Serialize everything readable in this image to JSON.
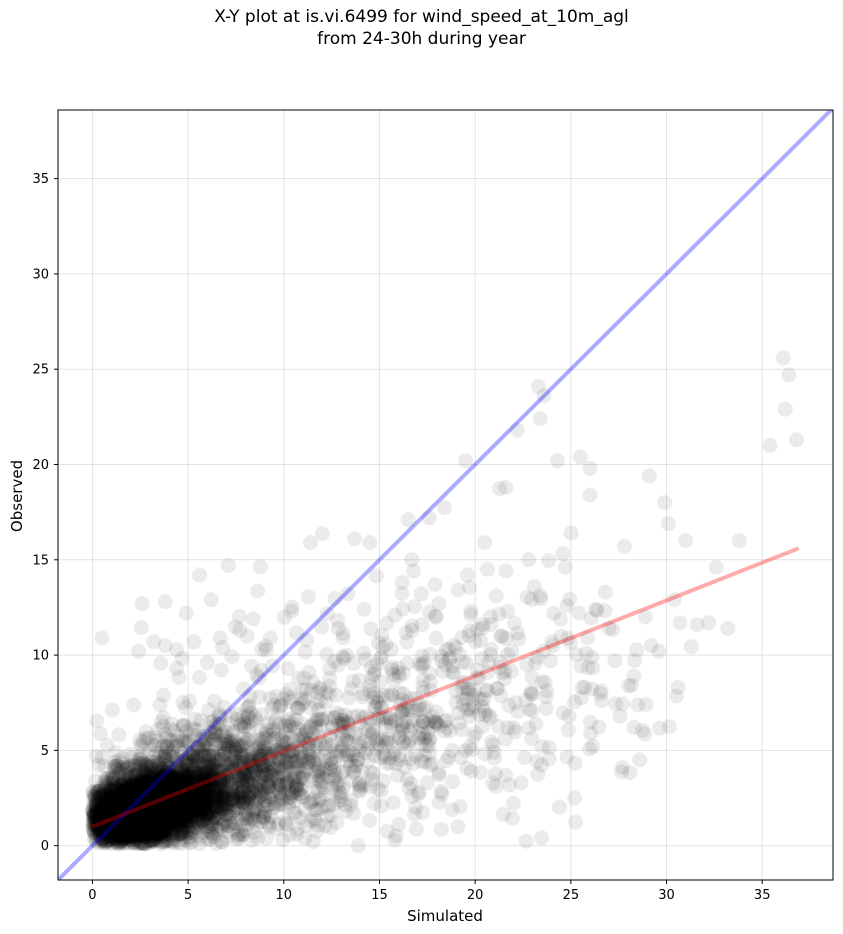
{
  "chart_data": {
    "type": "scatter",
    "title_line1": "X-Y plot at is.vi.6499 for wind_speed_at_10m_agl",
    "title_line2": "from 24-30h during year",
    "xlabel": "Simulated",
    "ylabel": "Observed",
    "xlim": [
      -1.8,
      38.7
    ],
    "ylim": [
      -1.8,
      38.6
    ],
    "xticks": [
      0,
      5,
      10,
      15,
      20,
      25,
      30,
      35
    ],
    "yticks": [
      0,
      5,
      10,
      15,
      20,
      25,
      30,
      35
    ],
    "grid": true,
    "reference_line": {
      "label": "1:1",
      "color": "#0000ff",
      "alpha": 0.33
    },
    "fit_line": {
      "x": [
        0,
        36.9
      ],
      "y": [
        1.0,
        15.6
      ],
      "color": "#ff0000",
      "alpha": 0.33
    },
    "marker_color": "#000000",
    "marker_alpha": 0.08,
    "points": [
      [
        0.5,
        10.9
      ],
      [
        6.2,
        12.9
      ],
      [
        7.1,
        14.7
      ],
      [
        5.6,
        14.2
      ],
      [
        11.4,
        15.9
      ],
      [
        13.7,
        16.1
      ],
      [
        14.5,
        15.9
      ],
      [
        19.5,
        20.2
      ],
      [
        22.2,
        21.8
      ],
      [
        23.3,
        24.1
      ],
      [
        23.6,
        23.6
      ],
      [
        23.4,
        22.4
      ],
      [
        21.6,
        18.8
      ],
      [
        20.5,
        15.9
      ],
      [
        16.5,
        17.1
      ],
      [
        17.6,
        17.2
      ],
      [
        24.3,
        20.2
      ],
      [
        25.5,
        20.4
      ],
      [
        26.0,
        19.8
      ],
      [
        26.0,
        18.4
      ],
      [
        29.1,
        19.4
      ],
      [
        29.9,
        18.0
      ],
      [
        30.1,
        16.9
      ],
      [
        31.0,
        16.0
      ],
      [
        32.6,
        14.6
      ],
      [
        33.8,
        16.0
      ],
      [
        36.1,
        25.6
      ],
      [
        36.4,
        24.7
      ],
      [
        36.2,
        22.9
      ],
      [
        35.4,
        21.0
      ],
      [
        36.8,
        21.3
      ],
      [
        30.6,
        8.3
      ],
      [
        28.3,
        6.2
      ],
      [
        27.7,
        4.1
      ],
      [
        28.6,
        4.5
      ],
      [
        25.2,
        2.5
      ],
      [
        22.4,
        3.3
      ],
      [
        19.1,
        1.0
      ],
      [
        15.8,
        0.3
      ],
      [
        13.9,
        0.0
      ],
      [
        15.8,
        12.1
      ],
      [
        17.9,
        13.7
      ],
      [
        18.6,
        10.3
      ],
      [
        20.1,
        9.2
      ],
      [
        21.4,
        11.0
      ],
      [
        22.7,
        9.5
      ],
      [
        24.1,
        12.2
      ],
      [
        25.8,
        10.1
      ],
      [
        27.0,
        11.4
      ],
      [
        28.3,
        8.9
      ],
      [
        29.2,
        10.5
      ],
      [
        30.4,
        12.9
      ],
      [
        31.6,
        11.6
      ],
      [
        32.2,
        11.7
      ],
      [
        33.2,
        11.4
      ],
      [
        26.6,
        7.6
      ],
      [
        24.9,
        6.8
      ],
      [
        23.5,
        5.2
      ],
      [
        21.0,
        4.6
      ],
      [
        18.8,
        5.0
      ],
      [
        17.5,
        3.3
      ],
      [
        16.2,
        6.2
      ],
      [
        14.9,
        7.8
      ],
      [
        13.3,
        5.5
      ],
      [
        12.4,
        9.3
      ],
      [
        11.2,
        10.8
      ],
      [
        10.4,
        12.3
      ],
      [
        9.3,
        10.9
      ],
      [
        8.4,
        11.9
      ],
      [
        7.7,
        11.3
      ],
      [
        6.8,
        10.4
      ],
      [
        6.0,
        9.6
      ],
      [
        5.3,
        10.7
      ],
      [
        4.4,
        9.3
      ],
      [
        3.8,
        10.5
      ],
      [
        3.2,
        10.7
      ],
      [
        2.4,
        10.2
      ],
      [
        2.6,
        12.7
      ],
      [
        3.8,
        12.8
      ],
      [
        4.9,
        12.2
      ],
      [
        12.9,
        2.8
      ],
      [
        11.4,
        1.3
      ],
      [
        10.3,
        2.3
      ],
      [
        9.1,
        0.4
      ],
      [
        8.0,
        1.6
      ],
      [
        19.6,
        14.2
      ],
      [
        21.1,
        13.1
      ],
      [
        22.8,
        15.0
      ],
      [
        24.7,
        14.6
      ],
      [
        27.8,
        15.7
      ],
      [
        26.8,
        13.3
      ],
      [
        28.9,
        12.0
      ],
      [
        19.0,
        8.1
      ],
      [
        20.8,
        6.7
      ],
      [
        22.1,
        7.5
      ],
      [
        25.6,
        8.3
      ],
      [
        27.3,
        9.7
      ],
      [
        29.6,
        10.2
      ],
      [
        30.7,
        11.7
      ],
      [
        23.1,
        13.6
      ],
      [
        17.2,
        9.4
      ],
      [
        16.7,
        11.3
      ],
      [
        15.1,
        9.9
      ],
      [
        14.2,
        12.4
      ],
      [
        13.1,
        10.9
      ],
      [
        18.4,
        6.0
      ],
      [
        19.8,
        3.9
      ],
      [
        16.9,
        2.0
      ],
      [
        15.4,
        4.3
      ],
      [
        14.0,
        3.1
      ],
      [
        12.0,
        6.6
      ],
      [
        11.0,
        4.6
      ],
      [
        10.0,
        7.7
      ],
      [
        9.6,
        5.0
      ],
      [
        8.7,
        8.8
      ],
      [
        21.7,
        12.3
      ],
      [
        24.0,
        10.7
      ],
      [
        26.3,
        12.4
      ],
      [
        18.1,
        12.7
      ],
      [
        20.4,
        11.6
      ]
    ],
    "cloud_centers": [
      {
        "x": 2.0,
        "y": 1.5,
        "sx": 1.1,
        "sy": 0.95
      },
      {
        "x": 4.0,
        "y": 2.4,
        "sx": 1.6,
        "sy": 1.3
      },
      {
        "x": 7.5,
        "y": 3.6,
        "sx": 2.5,
        "sy": 2.2
      },
      {
        "x": 13.5,
        "y": 5.8,
        "sx": 3.6,
        "sy": 3.2
      },
      {
        "x": 20.5,
        "y": 8.6,
        "sx": 4.2,
        "sy": 3.7
      }
    ],
    "cloud_counts": [
      2600,
      1800,
      900,
      430,
      250
    ]
  }
}
